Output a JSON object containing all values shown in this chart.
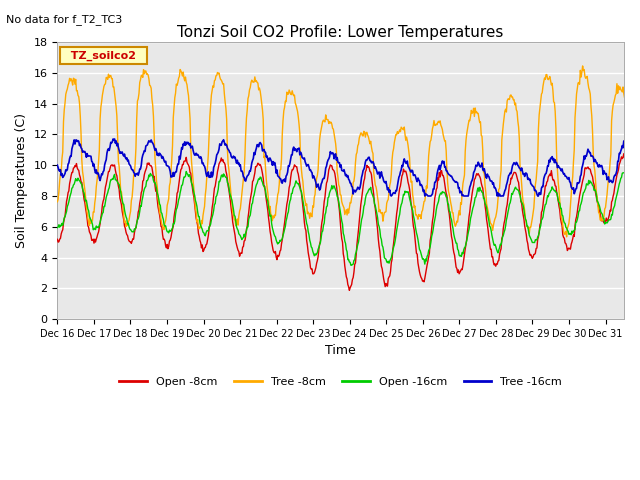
{
  "title": "Tonzi Soil CO2 Profile: Lower Temperatures",
  "subtitle": "No data for f_T2_TC3",
  "ylabel": "Soil Temperatures (C)",
  "xlabel": "Time",
  "ylim": [
    0,
    18
  ],
  "bg_color": "#e8e8e8",
  "legend_label": "TZ_soilco2",
  "series": {
    "open_8cm": {
      "label": "Open -8cm",
      "color": "#dd0000"
    },
    "tree_8cm": {
      "label": "Tree -8cm",
      "color": "#ffaa00"
    },
    "open_16cm": {
      "label": "Open -16cm",
      "color": "#00cc00"
    },
    "tree_16cm": {
      "label": "Tree -16cm",
      "color": "#0000cc"
    }
  },
  "xtick_labels": [
    "Dec 16",
    "Dec 17",
    "Dec 18",
    "Dec 19",
    "Dec 20",
    "Dec 21",
    "Dec 22",
    "Dec 23",
    "Dec 24",
    "Dec 25",
    "Dec 26",
    "Dec 27",
    "Dec 28",
    "Dec 29",
    "Dec 30",
    "Dec 31"
  ],
  "ytick_labels": [
    "0",
    "2",
    "4",
    "6",
    "8",
    "10",
    "12",
    "14",
    "16",
    "18"
  ],
  "figsize": [
    6.4,
    4.8
  ],
  "dpi": 100
}
